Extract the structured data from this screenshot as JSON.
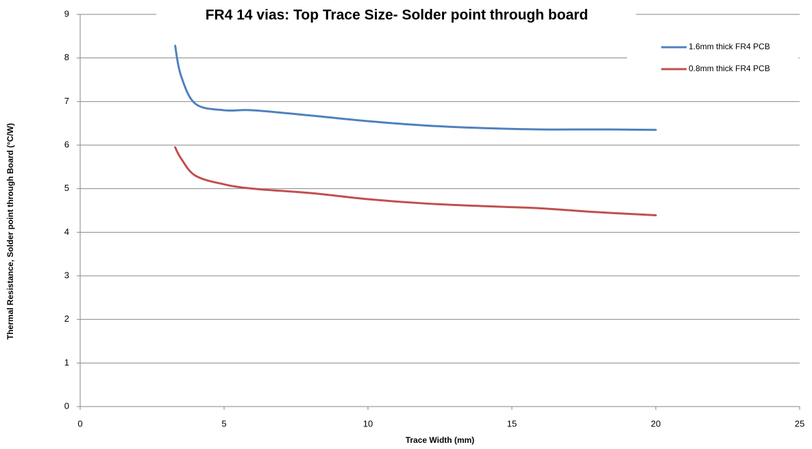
{
  "chart_data": {
    "type": "line",
    "title": "FR4 14 vias: Top Trace Size- Solder point through board",
    "x_label": "Trace Width (mm)",
    "y_label": "Thermal Resistance, Solder point through Board (°C/W)",
    "x": [
      3.3,
      3.5,
      4,
      5,
      6,
      8,
      10,
      12,
      14,
      16,
      18,
      20
    ],
    "series": [
      {
        "name": "1.6mm thick FR4 PCB",
        "color": "#4f81bd",
        "values": [
          8.28,
          7.6,
          6.95,
          6.8,
          6.8,
          6.68,
          6.55,
          6.45,
          6.39,
          6.36,
          6.36,
          6.35
        ]
      },
      {
        "name": "0.8mm thick FR4 PCB",
        "color": "#c0504d",
        "values": [
          5.95,
          5.7,
          5.3,
          5.1,
          5.0,
          4.9,
          4.76,
          4.66,
          4.6,
          4.55,
          4.46,
          4.39
        ]
      }
    ],
    "xlim": [
      0,
      25
    ],
    "xticks": [
      0,
      5,
      10,
      15,
      20,
      25
    ],
    "ylim": [
      0,
      9
    ],
    "yticks": [
      0,
      1,
      2,
      3,
      4,
      5,
      6,
      7,
      8,
      9
    ],
    "grid": true,
    "legend": "upper right"
  }
}
